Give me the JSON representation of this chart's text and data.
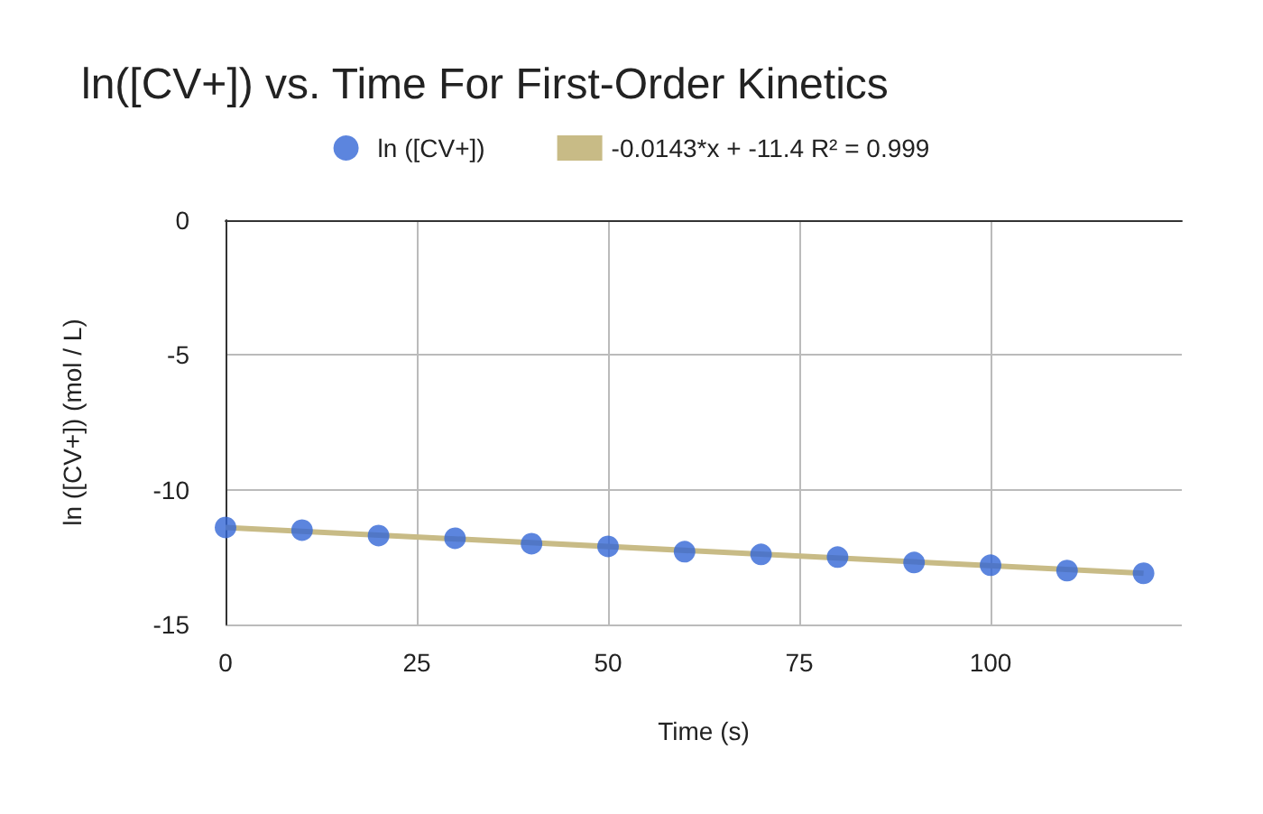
{
  "chart_data": {
    "type": "scatter",
    "title": "ln([CV+]) vs. Time For First-Order Kinetics",
    "xlabel": "Time (s)",
    "ylabel": "ln ([CV+]) (mol / L)",
    "x": [
      0,
      10,
      20,
      30,
      40,
      50,
      60,
      70,
      80,
      90,
      100,
      110,
      120
    ],
    "series": [
      {
        "name": "ln ([CV+])",
        "color": "#3367d6",
        "values": [
          -11.4,
          -11.5,
          -11.7,
          -11.8,
          -12.0,
          -12.1,
          -12.3,
          -12.4,
          -12.5,
          -12.7,
          -12.8,
          -13.0,
          -13.1
        ]
      },
      {
        "name": "-0.0143*x + -11.4 R² = 0.999",
        "type": "line",
        "marker": "none",
        "color": "#c8bb86",
        "x": [
          0,
          120
        ],
        "values": [
          -11.4,
          -13.1
        ]
      }
    ],
    "xlim": [
      0,
      125
    ],
    "xticks": [
      0,
      25,
      50,
      75,
      100
    ],
    "ylim": [
      -15,
      0
    ],
    "yticks": [
      0,
      -5,
      -10,
      -15
    ],
    "grid": true,
    "legend": "top",
    "marker": "circle"
  }
}
